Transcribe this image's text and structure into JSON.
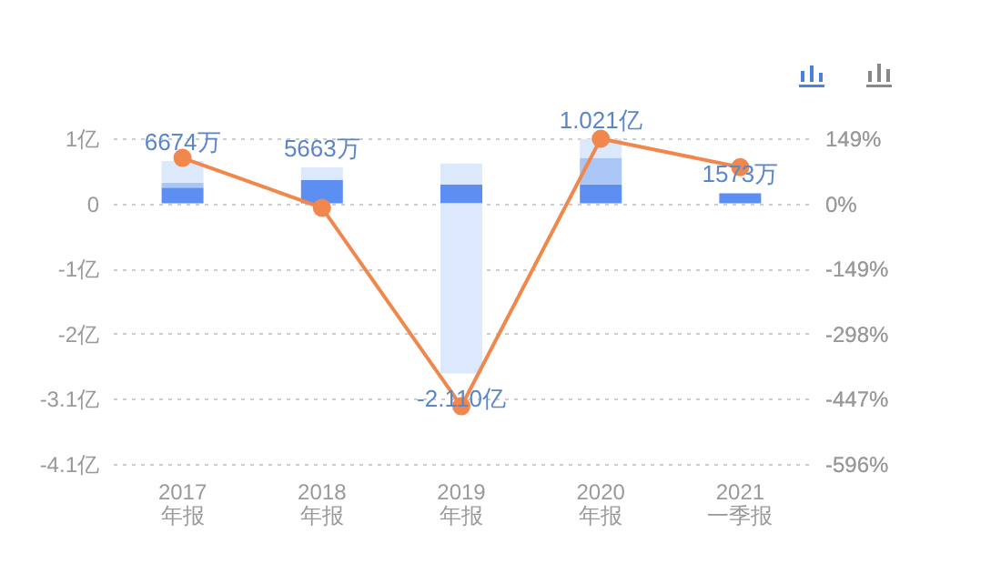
{
  "chart_data": {
    "type": "bar",
    "stacked": true,
    "categories": [
      "2017\n年报",
      "2018\n年报",
      "2019\n年报",
      "2020\n年报",
      "2021\n一季报"
    ],
    "series": [
      {
        "color": "#5d8ff2",
        "values": [
          0.25,
          0.37,
          0.3,
          0.3,
          0.16
        ]
      },
      {
        "color": "#a9c6f6",
        "values": [
          0.08,
          null,
          null,
          0.42,
          null
        ]
      },
      {
        "color": "#dce8fc",
        "values": [
          0.34,
          0.2,
          0.33,
          0.3,
          null
        ]
      },
      {
        "color": "#dce8fc",
        "values": [
          null,
          null,
          -2.69,
          null,
          null
        ]
      },
      {
        "type": "line",
        "axis": "y2",
        "color": "#f0874c",
        "values": [
          104,
          -10,
          -464,
          148,
          83
        ]
      }
    ],
    "ylim": [
      -4.12,
      1.03
    ],
    "yticks": [
      {
        "value": 1.03,
        "label": "1亿"
      },
      0,
      {
        "value": -1.03,
        "label": "-1亿"
      },
      {
        "value": -2.06,
        "label": "-2亿"
      },
      {
        "value": -3.09,
        "label": "-3.1亿"
      },
      {
        "value": -4.12,
        "label": "-4.1亿"
      }
    ],
    "y2lim": [
      -596,
      149
    ],
    "y2ticks": [
      {
        "value": 149,
        "label": "149%"
      },
      {
        "value": 0,
        "label": "0%"
      },
      {
        "value": -149,
        "label": "-149%"
      },
      {
        "value": -298,
        "label": "-298%"
      },
      {
        "value": -447,
        "label": "-447%"
      },
      {
        "value": -596,
        "label": "-596%"
      }
    ],
    "grid": "y",
    "marker": "circle",
    "annotations": [
      "6674万",
      "5663万",
      "-2.110亿",
      "1.021亿",
      "1573万"
    ]
  }
}
